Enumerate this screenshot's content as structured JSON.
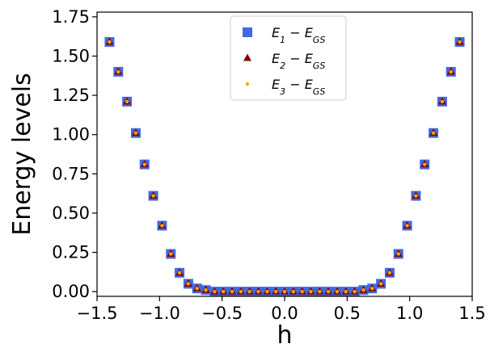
{
  "chart_data": {
    "type": "scatter",
    "xlabel": "h",
    "ylabel": "Energy levels",
    "xlim": [
      -1.5,
      1.5
    ],
    "ylim": [
      -0.03,
      1.78
    ],
    "x_ticks": [
      "−1.5",
      "−1.0",
      "−0.5",
      "0.0",
      "0.5",
      "1.0",
      "1.5"
    ],
    "y_ticks": [
      "0.00",
      "0.25",
      "0.50",
      "0.75",
      "1.00",
      "1.25",
      "1.50",
      "1.75"
    ],
    "x_tick_values": [
      -1.5,
      -1.0,
      -0.5,
      0.0,
      0.5,
      1.0,
      1.5
    ],
    "y_tick_values": [
      0.0,
      0.25,
      0.5,
      0.75,
      1.0,
      1.25,
      1.5,
      1.75
    ],
    "grid": false,
    "legend_position": "top-center",
    "x": [
      -1.4,
      -1.33,
      -1.26,
      -1.19,
      -1.12,
      -1.05,
      -0.98,
      -0.91,
      -0.84,
      -0.77,
      -0.7,
      -0.63,
      -0.56,
      -0.49,
      -0.42,
      -0.35,
      -0.28,
      -0.21,
      -0.14,
      -0.07,
      0.0,
      0.07,
      0.14,
      0.21,
      0.28,
      0.35,
      0.42,
      0.49,
      0.56,
      0.63,
      0.7,
      0.77,
      0.84,
      0.91,
      0.98,
      1.05,
      1.12,
      1.19,
      1.26,
      1.33,
      1.4
    ],
    "series": [
      {
        "name": "E1 - EGS",
        "legend_main": "E",
        "legend_sub": "1",
        "legend_minus": "−",
        "legend_main2": "E",
        "legend_sub2": "GS",
        "marker": "square",
        "color": "#4169e1",
        "values": [
          1.59,
          1.4,
          1.21,
          1.01,
          0.81,
          0.61,
          0.42,
          0.24,
          0.12,
          0.05,
          0.02,
          0.01,
          0.0,
          0.0,
          0.0,
          0.0,
          0.0,
          0.0,
          0.0,
          0.0,
          0.0,
          0.0,
          0.0,
          0.0,
          0.0,
          0.0,
          0.0,
          0.0,
          0.0,
          0.01,
          0.02,
          0.05,
          0.12,
          0.24,
          0.42,
          0.61,
          0.81,
          1.01,
          1.21,
          1.4,
          1.59
        ]
      },
      {
        "name": "E2 - EGS",
        "legend_main": "E",
        "legend_sub": "2",
        "legend_minus": "−",
        "legend_main2": "E",
        "legend_sub2": "GS",
        "marker": "triangle",
        "color": "#800000",
        "values": [
          1.59,
          1.4,
          1.21,
          1.01,
          0.81,
          0.61,
          0.42,
          0.24,
          0.12,
          0.05,
          0.02,
          0.01,
          0.0,
          0.0,
          0.0,
          0.0,
          0.0,
          0.0,
          0.0,
          0.0,
          0.0,
          0.0,
          0.0,
          0.0,
          0.0,
          0.0,
          0.0,
          0.0,
          0.0,
          0.01,
          0.02,
          0.05,
          0.12,
          0.24,
          0.42,
          0.61,
          0.81,
          1.01,
          1.21,
          1.4,
          1.59
        ]
      },
      {
        "name": "E3 - EGS",
        "legend_main": "E",
        "legend_sub": "3",
        "legend_minus": "−",
        "legend_main2": "E",
        "legend_sub2": "GS",
        "marker": "dot",
        "color": "#ffa500",
        "values": [
          1.59,
          1.4,
          1.21,
          1.01,
          0.81,
          0.61,
          0.42,
          0.24,
          0.12,
          0.05,
          0.02,
          0.01,
          0.0,
          0.0,
          0.0,
          0.0,
          0.0,
          0.0,
          0.0,
          0.0,
          0.0,
          0.0,
          0.0,
          0.0,
          0.0,
          0.0,
          0.0,
          0.0,
          0.0,
          0.01,
          0.02,
          0.05,
          0.12,
          0.24,
          0.42,
          0.61,
          0.81,
          1.01,
          1.21,
          1.4,
          1.59
        ]
      }
    ]
  }
}
